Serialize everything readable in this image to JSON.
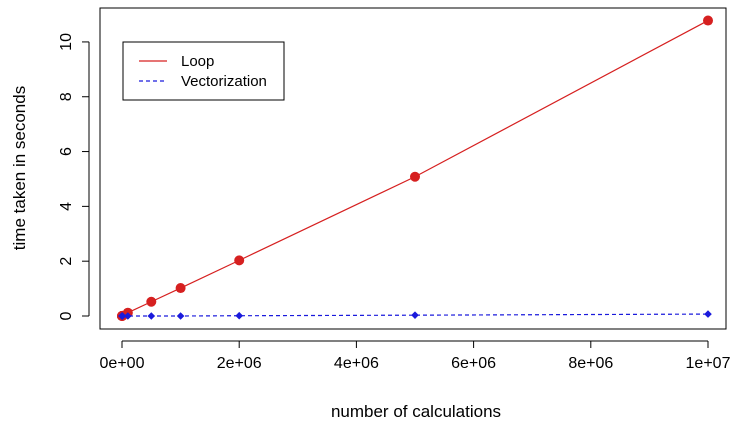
{
  "chart_data": {
    "type": "line",
    "title": "",
    "xlabel": "number of calculations",
    "ylabel": "time taken in seconds",
    "xlim": [
      0,
      10000000
    ],
    "ylim": [
      0,
      10.8
    ],
    "x_ticks": [
      {
        "value": 0,
        "label": "0e+00"
      },
      {
        "value": 2000000,
        "label": "2e+06"
      },
      {
        "value": 4000000,
        "label": "4e+06"
      },
      {
        "value": 6000000,
        "label": "6e+06"
      },
      {
        "value": 8000000,
        "label": "8e+06"
      },
      {
        "value": 10000000,
        "label": "1e+07"
      }
    ],
    "y_ticks": [
      {
        "value": 0,
        "label": "0"
      },
      {
        "value": 2,
        "label": "2"
      },
      {
        "value": 4,
        "label": "4"
      },
      {
        "value": 6,
        "label": "6"
      },
      {
        "value": 8,
        "label": "8"
      },
      {
        "value": 10,
        "label": "10"
      }
    ],
    "grid": false,
    "legend_position": "top-left",
    "series": [
      {
        "name": "Loop",
        "color": "#d62020",
        "line_style": "solid",
        "marker": "circle",
        "x": [
          1,
          10,
          100,
          1000,
          10000,
          100000,
          500000,
          1000000,
          2000000,
          5000000,
          10000000
        ],
        "y": [
          0,
          0,
          0,
          0,
          0.01,
          0.12,
          0.52,
          1.02,
          2.03,
          5.08,
          10.78
        ]
      },
      {
        "name": "Vectorization",
        "color": "#1a1adc",
        "line_style": "dashed",
        "marker": "diamond",
        "x": [
          1,
          10,
          100,
          1000,
          10000,
          100000,
          500000,
          1000000,
          2000000,
          5000000,
          10000000
        ],
        "y": [
          0,
          0,
          0,
          0,
          0,
          0,
          0,
          0,
          0.01,
          0.03,
          0.07
        ]
      }
    ]
  }
}
